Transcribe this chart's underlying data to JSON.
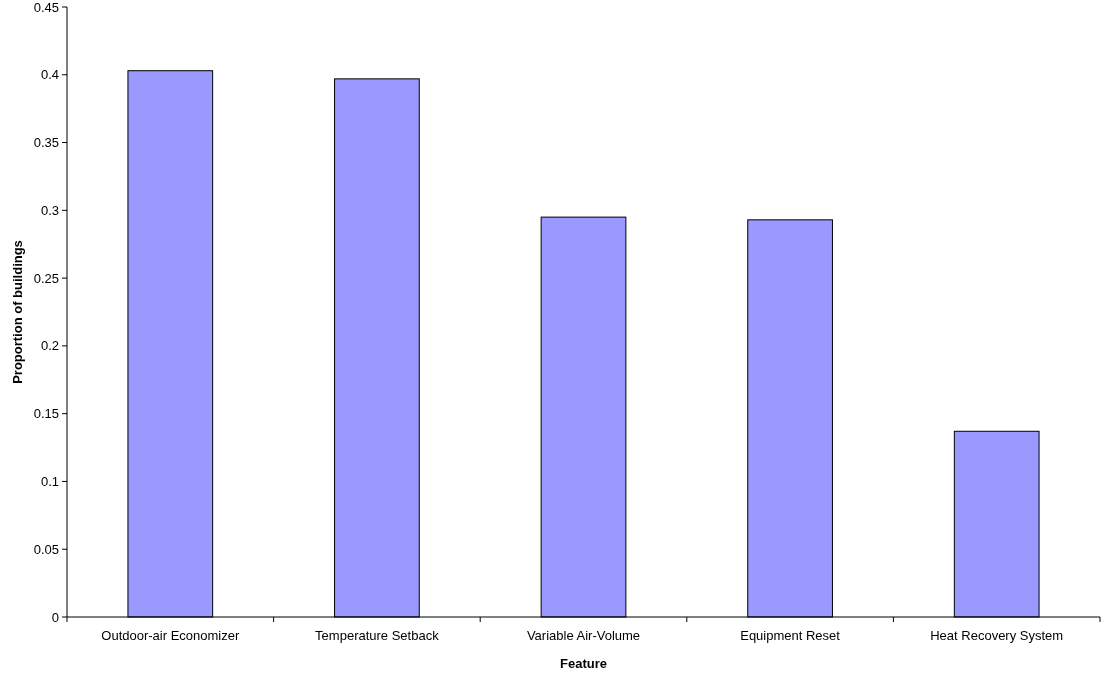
{
  "chart_data": {
    "type": "bar",
    "xlabel": "Feature",
    "ylabel": "Proportion of buildings",
    "categories": [
      "Outdoor-air Economizer",
      "Temperature Setback",
      "Variable Air-Volume",
      "Equipment Reset",
      "Heat Recovery System"
    ],
    "values": [
      0.403,
      0.397,
      0.295,
      0.293,
      0.137
    ],
    "color": "#9999ff",
    "ylim": [
      0,
      0.45
    ],
    "yticks": [
      0,
      0.05,
      0.1,
      0.15,
      0.2,
      0.25,
      0.3,
      0.35,
      0.4,
      0.45
    ],
    "grid": false
  }
}
